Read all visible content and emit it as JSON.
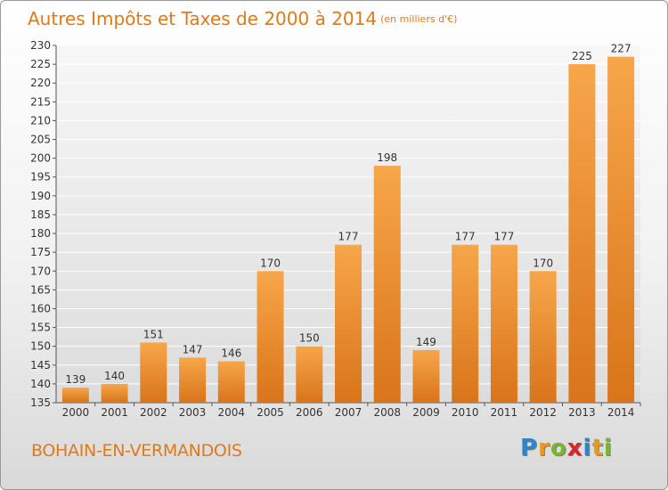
{
  "title": "Autres Impôts et Taxes de 2000 à 2014",
  "unit": "(en milliers d'€)",
  "commune": "BOHAIN-EN-VERMANDOIS",
  "logo": {
    "letters": [
      "P",
      "r",
      "o",
      "x",
      "i",
      "t",
      "i"
    ],
    "colors": [
      "#2e86c9",
      "#e89b19",
      "#7bb72c",
      "#d9262a",
      "#2e86c9",
      "#e89b19",
      "#7bb72c"
    ]
  },
  "colors": {
    "bar_light": "#f7a64a",
    "bar_dark": "#d9741a",
    "accent": "#e07a17"
  },
  "chart_data": {
    "type": "bar",
    "categories": [
      "2000",
      "2001",
      "2002",
      "2003",
      "2004",
      "2005",
      "2006",
      "2007",
      "2008",
      "2009",
      "2010",
      "2011",
      "2012",
      "2013",
      "2014"
    ],
    "values": [
      139,
      140,
      151,
      147,
      146,
      170,
      150,
      177,
      198,
      149,
      177,
      177,
      170,
      225,
      227
    ],
    "ylim": [
      135,
      230
    ],
    "yticks": [
      135,
      140,
      145,
      150,
      155,
      160,
      165,
      170,
      175,
      180,
      185,
      190,
      195,
      200,
      205,
      210,
      215,
      220,
      225,
      230
    ],
    "grid": true,
    "data_labels": true
  }
}
